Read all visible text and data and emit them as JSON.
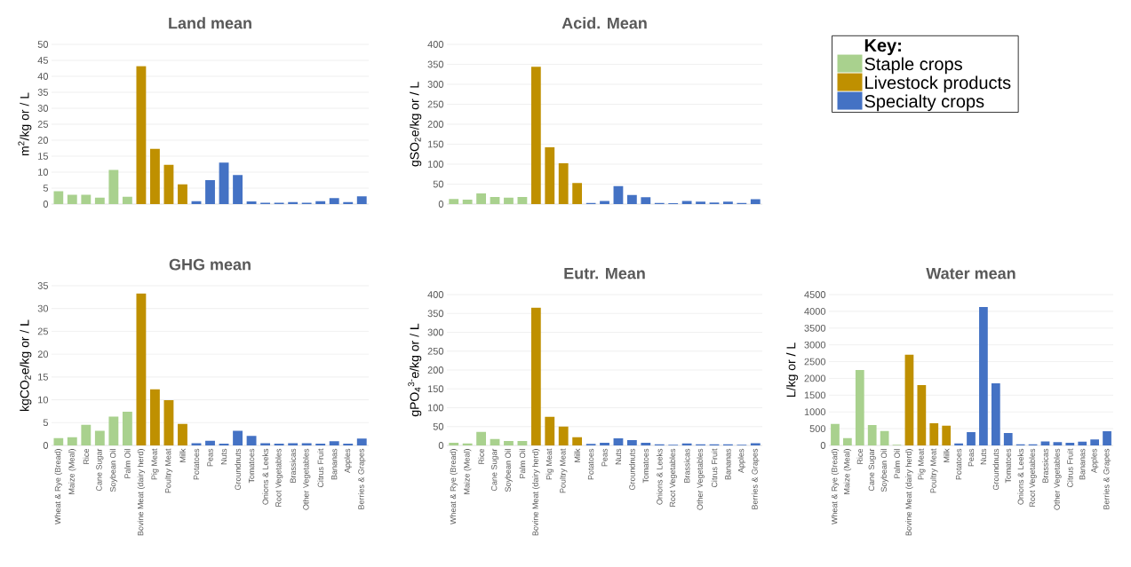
{
  "chart_data": [
    {
      "type": "bar",
      "title": "Land mean",
      "ylabel": "m$^{2}$/kg or / L",
      "categories": [
        null,
        null,
        null,
        null,
        null,
        null,
        null,
        null,
        null,
        null,
        null,
        null,
        null,
        null,
        null,
        null,
        null,
        null,
        null,
        null,
        null,
        null,
        null
      ],
      "series": [
        {
          "color": "#a9d18e",
          "values": [
            4.0,
            2.9,
            2.9,
            2.0,
            10.7,
            2.3,
            null,
            null,
            null,
            null,
            null,
            null,
            null,
            null,
            null,
            null,
            null,
            null,
            null,
            null,
            null,
            null,
            null
          ]
        },
        {
          "color": "#bf9000",
          "values": [
            null,
            null,
            null,
            null,
            null,
            null,
            43.2,
            17.3,
            12.3,
            6.2,
            null,
            null,
            null,
            null,
            null,
            null,
            null,
            null,
            null,
            null,
            null,
            null,
            null
          ]
        },
        {
          "color": "#4472c4",
          "values": [
            null,
            null,
            null,
            null,
            null,
            null,
            null,
            null,
            null,
            null,
            0.9,
            7.5,
            13.0,
            9.1,
            0.8,
            0.4,
            0.4,
            0.6,
            0.4,
            0.9,
            1.9,
            0.6,
            2.4
          ]
        }
      ],
      "ylim": [
        0,
        50
      ],
      "yticks": [
        0,
        5,
        10,
        15,
        20,
        25,
        30,
        35,
        40,
        45,
        50
      ],
      "grid": "y"
    },
    {
      "type": "bar",
      "title": "Acid. Mean",
      "ylabel": "gSO$_{2}$e/kg or / L",
      "legend_title": "Key:",
      "legend": "right",
      "categories": [
        null,
        null,
        null,
        null,
        null,
        null,
        null,
        null,
        null,
        null,
        null,
        null,
        null,
        null,
        null,
        null,
        null,
        null,
        null,
        null,
        null,
        null,
        null
      ],
      "series": [
        {
          "name": "Staple crops",
          "color": "#a9d18e",
          "values": [
            13,
            11,
            27,
            18,
            16,
            18,
            null,
            null,
            null,
            null,
            null,
            null,
            null,
            null,
            null,
            null,
            null,
            null,
            null,
            null,
            null,
            null,
            null
          ]
        },
        {
          "name": "Livestock products",
          "color": "#bf9000",
          "values": [
            null,
            null,
            null,
            null,
            null,
            null,
            344,
            142,
            102,
            53,
            null,
            null,
            null,
            null,
            null,
            null,
            null,
            null,
            null,
            null,
            null,
            null,
            null
          ]
        },
        {
          "name": "Specialty crops",
          "color": "#4472c4",
          "values": [
            null,
            null,
            null,
            null,
            null,
            null,
            null,
            null,
            null,
            null,
            3,
            8,
            45,
            23,
            17,
            3,
            2,
            8,
            6,
            4,
            6,
            3,
            12
          ]
        }
      ],
      "ylim": [
        0,
        400
      ],
      "yticks": [
        0,
        50,
        100,
        150,
        200,
        250,
        300,
        350,
        400
      ],
      "grid": "y"
    },
    {
      "type": "bar",
      "title": "GHG mean",
      "ylabel": "kgCO$_{2}$e/kg or / L",
      "categories": [
        "Wheat & Rye (Bread)",
        "Maize (Meal)",
        "Rice",
        "Cane Sugar",
        "Soybean Oil",
        "Palm Oil",
        "Bovine Meat (dairy herd)",
        "Pig Meat",
        "Poultry Meat",
        "Milk",
        "Potatoes",
        "Peas",
        "Nuts",
        "Groundnuts",
        "Tomatoes",
        "Onions & Leeks",
        "Root Vegetables",
        "Brassicas",
        "Other Vegetables",
        "Citrus Fruit",
        "Bananas",
        "Apples",
        "Berries & Grapes"
      ],
      "series": [
        {
          "color": "#a9d18e",
          "values": [
            1.6,
            1.8,
            4.5,
            3.2,
            6.3,
            7.4,
            null,
            null,
            null,
            null,
            null,
            null,
            null,
            null,
            null,
            null,
            null,
            null,
            null,
            null,
            null,
            null,
            null
          ]
        },
        {
          "color": "#bf9000",
          "values": [
            null,
            null,
            null,
            null,
            null,
            null,
            33.3,
            12.3,
            9.9,
            4.7,
            null,
            null,
            null,
            null,
            null,
            null,
            null,
            null,
            null,
            null,
            null,
            null,
            null
          ]
        },
        {
          "color": "#4472c4",
          "values": [
            null,
            null,
            null,
            null,
            null,
            null,
            null,
            null,
            null,
            null,
            0.5,
            1.0,
            0.4,
            3.2,
            2.1,
            0.5,
            0.4,
            0.5,
            0.5,
            0.4,
            0.9,
            0.4,
            1.5
          ]
        }
      ],
      "ylim": [
        0,
        35
      ],
      "yticks": [
        0,
        5,
        10,
        15,
        20,
        25,
        30,
        35
      ],
      "grid": "y"
    },
    {
      "type": "bar",
      "title": "Eutr. Mean",
      "ylabel": "gPO$_{4}$$^{3-}$e/kg or / L",
      "categories": [
        "Wheat & Rye (Bread)",
        "Maize (Meal)",
        "Rice",
        "Cane Sugar",
        "Soybean Oil",
        "Palm Oil",
        "Bovine Meat (dairy herd)",
        "Pig Meat",
        "Poultry Meat",
        "Milk",
        "Potatoes",
        "Peas",
        "Nuts",
        "Groundnuts",
        "Tomatoes",
        "Onions & Leeks",
        "Root Vegetables",
        "Brassicas",
        "Other Vegetables",
        "Citrus Fruit",
        "Bananas",
        "Apples",
        "Berries & Grapes"
      ],
      "series": [
        {
          "color": "#a9d18e",
          "values": [
            7,
            5,
            36,
            17,
            12,
            12,
            null,
            null,
            null,
            null,
            null,
            null,
            null,
            null,
            null,
            null,
            null,
            null,
            null,
            null,
            null,
            null,
            null
          ]
        },
        {
          "color": "#bf9000",
          "values": [
            null,
            null,
            null,
            null,
            null,
            null,
            365,
            76,
            50,
            22,
            null,
            null,
            null,
            null,
            null,
            null,
            null,
            null,
            null,
            null,
            null,
            null,
            null
          ]
        },
        {
          "color": "#4472c4",
          "values": [
            null,
            null,
            null,
            null,
            null,
            null,
            null,
            null,
            null,
            null,
            4,
            7,
            19,
            14,
            7,
            3,
            2,
            5,
            3,
            3,
            3,
            2,
            6
          ]
        }
      ],
      "ylim": [
        0,
        400
      ],
      "yticks": [
        0,
        50,
        100,
        150,
        200,
        250,
        300,
        350,
        400
      ],
      "grid": "y"
    },
    {
      "type": "bar",
      "title": "Water mean",
      "ylabel": "L/kg or / L",
      "categories": [
        "Wheat & Rye (Bread)",
        "Maize (Meal)",
        "Rice",
        "Cane Sugar",
        "Soybean Oil",
        "Palm Oil",
        "Bovine Meat (dairy herd)",
        "Pig Meat",
        "Poultry Meat",
        "Milk",
        "Potatoes",
        "Peas",
        "Nuts",
        "Groundnuts",
        "Tomatoes",
        "Onions & Leeks",
        "Root Vegetables",
        "Brassicas",
        "Other Vegetables",
        "Citrus Fruit",
        "Bananas",
        "Apples",
        "Berries & Grapes"
      ],
      "series": [
        {
          "color": "#a9d18e",
          "values": [
            640,
            220,
            2250,
            610,
            430,
            20,
            null,
            null,
            null,
            null,
            null,
            null,
            null,
            null,
            null,
            null,
            null,
            null,
            null,
            null,
            null,
            null,
            null
          ]
        },
        {
          "color": "#bf9000",
          "values": [
            null,
            null,
            null,
            null,
            null,
            null,
            2710,
            1800,
            660,
            590,
            null,
            null,
            null,
            null,
            null,
            null,
            null,
            null,
            null,
            null,
            null,
            null,
            null
          ]
        },
        {
          "color": "#4472c4",
          "values": [
            null,
            null,
            null,
            null,
            null,
            null,
            null,
            null,
            null,
            null,
            60,
            400,
            4130,
            1850,
            370,
            30,
            30,
            120,
            100,
            80,
            110,
            180,
            420
          ]
        }
      ],
      "ylim": [
        0,
        4500
      ],
      "yticks": [
        0,
        500,
        1000,
        1500,
        2000,
        2500,
        3000,
        3500,
        4000,
        4500
      ],
      "grid": "y"
    }
  ]
}
